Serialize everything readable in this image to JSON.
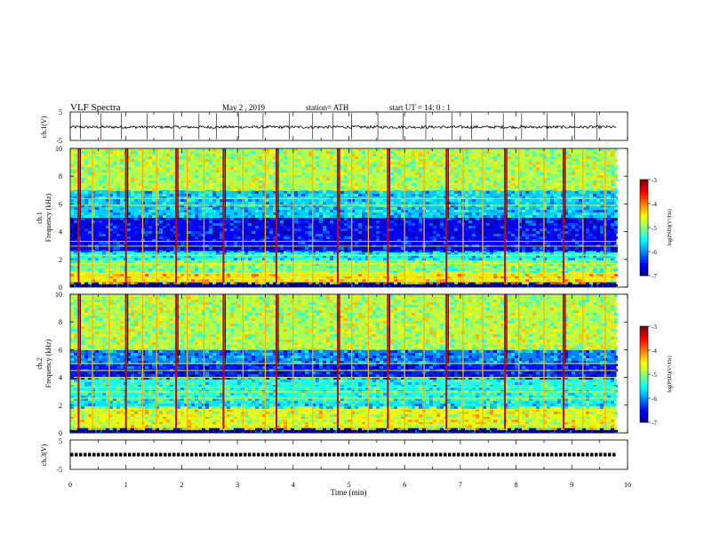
{
  "header": {
    "title": "VLF  Spectra",
    "date": "May 2  , 2019",
    "station": "station= ATH",
    "start": "start  UT  =   14: 0   : 1"
  },
  "chart_data": [
    {
      "type": "line",
      "panel": "ch1-waveform",
      "ylabel": "ch.1(V)",
      "ylim": [
        -5,
        5
      ],
      "yticks": [
        "5",
        "-5"
      ],
      "xlim": [
        0,
        10
      ],
      "x_end": 9.8,
      "baseline": -0.3,
      "noise_amplitude": 0.5,
      "spike_times": [
        0.18,
        0.55,
        0.92,
        1.38,
        1.86,
        2.31,
        2.62,
        3.02,
        3.46,
        3.93,
        4.35,
        4.71,
        5.05,
        5.52,
        5.97,
        6.38,
        6.85,
        7.2,
        7.77,
        8.1,
        8.56,
        9.05,
        9.45
      ]
    },
    {
      "type": "heatmap",
      "panel": "ch1-spectrogram",
      "ylabel": "ch.1\nFrequency  (kHz)",
      "ylim": [
        0,
        10
      ],
      "yticks": [
        "0",
        "2",
        "4",
        "6",
        "8",
        "10"
      ],
      "xlim": [
        0,
        10
      ],
      "x_end": 9.8,
      "colorbar": {
        "label": "log(PSD)(V²/Hz)",
        "range": [
          -7,
          -3
        ],
        "ticks": [
          "-3",
          "-4",
          "-5",
          "-6",
          "-7"
        ]
      },
      "bands": [
        {
          "f": [
            0,
            0.35
          ],
          "level": -6.5
        },
        {
          "f": [
            0.35,
            1.1
          ],
          "level": -4.4
        },
        {
          "f": [
            1.1,
            2.0
          ],
          "level": -5.0
        },
        {
          "f": [
            2.0,
            2.6
          ],
          "level": -5.5
        },
        {
          "f": [
            2.6,
            5.0
          ],
          "level": -6.5
        },
        {
          "f": [
            5.0,
            7.0
          ],
          "level": -5.7
        },
        {
          "f": [
            7.0,
            10.0
          ],
          "level": -4.8
        }
      ],
      "lines_khz": [
        0.6,
        1.0,
        1.7,
        2.3,
        2.95,
        3.3,
        5.9,
        6.4
      ],
      "sferic_times": [
        0.15,
        0.4,
        0.7,
        1.0,
        1.3,
        1.55,
        1.9,
        2.1,
        2.4,
        2.75,
        3.1,
        3.5,
        3.7,
        4.0,
        4.35,
        4.8,
        5.05,
        5.35,
        5.7,
        6.0,
        6.35,
        6.75,
        7.05,
        7.4,
        7.8,
        8.05,
        8.5,
        8.85,
        9.2,
        9.6
      ]
    },
    {
      "type": "heatmap",
      "panel": "ch2-spectrogram",
      "ylabel": "ch.2\nFrequency  (kHz)",
      "ylim": [
        0,
        10
      ],
      "yticks": [
        "0",
        "2",
        "4",
        "6",
        "8",
        "10"
      ],
      "xlim": [
        0,
        10
      ],
      "x_end": 9.8,
      "colorbar": {
        "label": "log(PSD)(V²/Hz)",
        "range": [
          -7,
          -3
        ],
        "ticks": [
          "-3",
          "-4",
          "-5",
          "-6",
          "-7"
        ]
      },
      "bands": [
        {
          "f": [
            0,
            0.35
          ],
          "level": -6.5
        },
        {
          "f": [
            0.35,
            1.9
          ],
          "level": -4.6
        },
        {
          "f": [
            1.9,
            2.3
          ],
          "level": -5.6
        },
        {
          "f": [
            2.3,
            4.0
          ],
          "level": -5.4
        },
        {
          "f": [
            4.0,
            5.0
          ],
          "level": -6.4
        },
        {
          "f": [
            5.0,
            6.0
          ],
          "level": -6.0
        },
        {
          "f": [
            6.0,
            10.0
          ],
          "level": -4.8
        }
      ],
      "lines_khz": [
        0.6,
        1.0,
        1.7,
        2.5,
        2.95,
        3.3,
        4.0,
        4.5,
        5.0
      ],
      "sferic_times": [
        0.15,
        0.4,
        0.7,
        1.0,
        1.3,
        1.55,
        1.9,
        2.1,
        2.4,
        2.75,
        3.1,
        3.5,
        3.7,
        4.0,
        4.35,
        4.8,
        5.05,
        5.35,
        5.7,
        6.0,
        6.35,
        6.75,
        7.05,
        7.4,
        7.8,
        8.05,
        8.5,
        8.85,
        9.2,
        9.6
      ]
    },
    {
      "type": "line",
      "panel": "ch3-waveform",
      "ylabel": "ch.3(V)",
      "ylim": [
        -5,
        5
      ],
      "yticks": [
        "5",
        "0",
        "-5"
      ],
      "xlabel": "Time  (min)",
      "xticks": [
        "0",
        "1",
        "2",
        "3",
        "4",
        "5",
        "6",
        "7",
        "8",
        "9",
        "10"
      ],
      "xlim": [
        0,
        10
      ],
      "x_end": 9.8,
      "baseline": 0,
      "noise_amplitude": 0.3
    }
  ]
}
